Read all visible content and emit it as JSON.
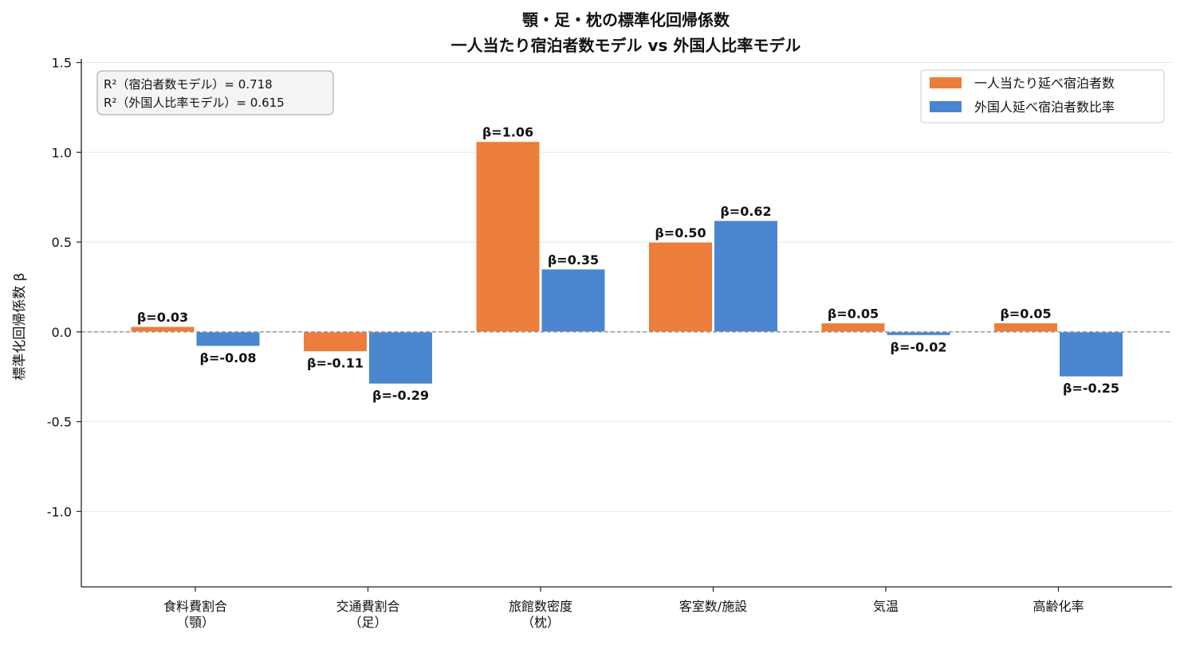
{
  "chart_data": {
    "type": "bar",
    "title_lines": [
      "顎・足・枕の標準化回帰係数",
      "一人当たり宿泊者数モデル vs 外国人比率モデル"
    ],
    "ylabel": "標準化回帰係数 β",
    "ylim": [
      -1.42,
      1.52
    ],
    "yticks": [
      -1.0,
      -0.5,
      0.0,
      0.5,
      1.0,
      1.5
    ],
    "ytick_labels": [
      "-1.0",
      "-0.5",
      "0.0",
      "0.5",
      "1.0",
      "1.5"
    ],
    "grid": true,
    "categories": [
      [
        "食料費割合",
        "（顎）"
      ],
      [
        "交通費割合",
        "（足）"
      ],
      [
        "旅館数密度",
        "（枕）"
      ],
      [
        "客室数/施設"
      ],
      [
        "気温"
      ],
      [
        "高齢化率"
      ]
    ],
    "series": [
      {
        "name": "一人当たり延べ宿泊者数",
        "color": "#ED7D3A",
        "values": [
          0.03,
          -0.11,
          1.06,
          0.5,
          0.05,
          0.05
        ],
        "labels": [
          "β=0.03",
          "β=-0.11",
          "β=1.06",
          "β=0.50",
          "β=0.05",
          "β=0.05"
        ]
      },
      {
        "name": "外国人延べ宿泊者数比率",
        "color": "#4A86CF",
        "values": [
          -0.08,
          -0.29,
          0.35,
          0.62,
          -0.02,
          -0.25
        ],
        "labels": [
          "β=-0.08",
          "β=-0.29",
          "β=0.35",
          "β=0.62",
          "β=-0.02",
          "β=-0.25"
        ]
      }
    ],
    "legend_position": "top-right",
    "annotation": [
      "R²（宿泊者数モデル）= 0.718",
      "R²（外国人比率モデル）= 0.615"
    ],
    "zero_line_style": "dashed"
  }
}
